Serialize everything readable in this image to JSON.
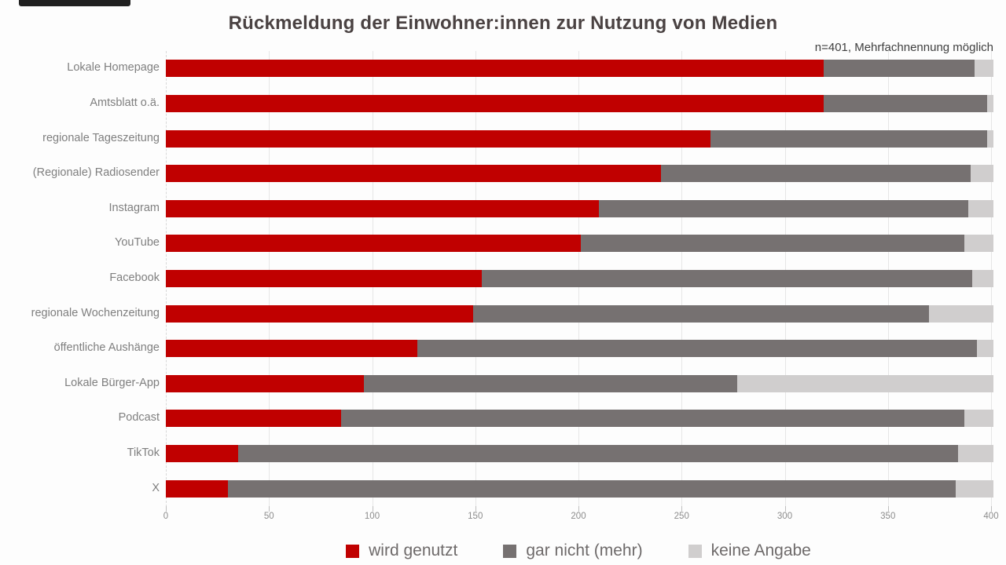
{
  "chart_data": {
    "type": "bar",
    "orientation": "horizontal",
    "stacked": true,
    "title": "Rückmeldung der Einwohner:innen zur Nutzung von Medien",
    "subtitle": "n=401, Mehrfachnennung möglich",
    "categories": [
      "Lokale Homepage",
      "Amtsblatt o.ä.",
      "regionale Tageszeitung",
      "(Regionale) Radiosender",
      "Instagram",
      "YouTube",
      "Facebook",
      "regionale Wochenzeitung",
      "öffentliche Aushänge",
      "Lokale Bürger-App",
      "Podcast",
      "TikTok",
      "X"
    ],
    "series": [
      {
        "name": "wird genutzt",
        "color": "#c00000",
        "values": [
          319,
          319,
          264,
          240,
          210,
          201,
          153,
          149,
          122,
          96,
          85,
          35,
          30
        ]
      },
      {
        "name": "gar nicht (mehr)",
        "color": "#767171",
        "values": [
          73,
          79,
          134,
          150,
          179,
          186,
          238,
          221,
          271,
          181,
          302,
          349,
          353
        ]
      },
      {
        "name": "keine Angabe",
        "color": "#d0cece",
        "values": [
          9,
          3,
          3,
          11,
          12,
          14,
          10,
          31,
          8,
          124,
          14,
          17,
          18
        ]
      }
    ],
    "xlim": [
      0,
      400
    ],
    "xticks": [
      0,
      50,
      100,
      150,
      200,
      250,
      300,
      350,
      400
    ],
    "grid": true,
    "legend_position": "bottom"
  },
  "colors": {
    "title_text": "#4a4242",
    "axis_text": "#8c8c8c",
    "category_text": "#7f7f7f",
    "gridline": "#e6e6e6",
    "artifact": "#202020"
  }
}
